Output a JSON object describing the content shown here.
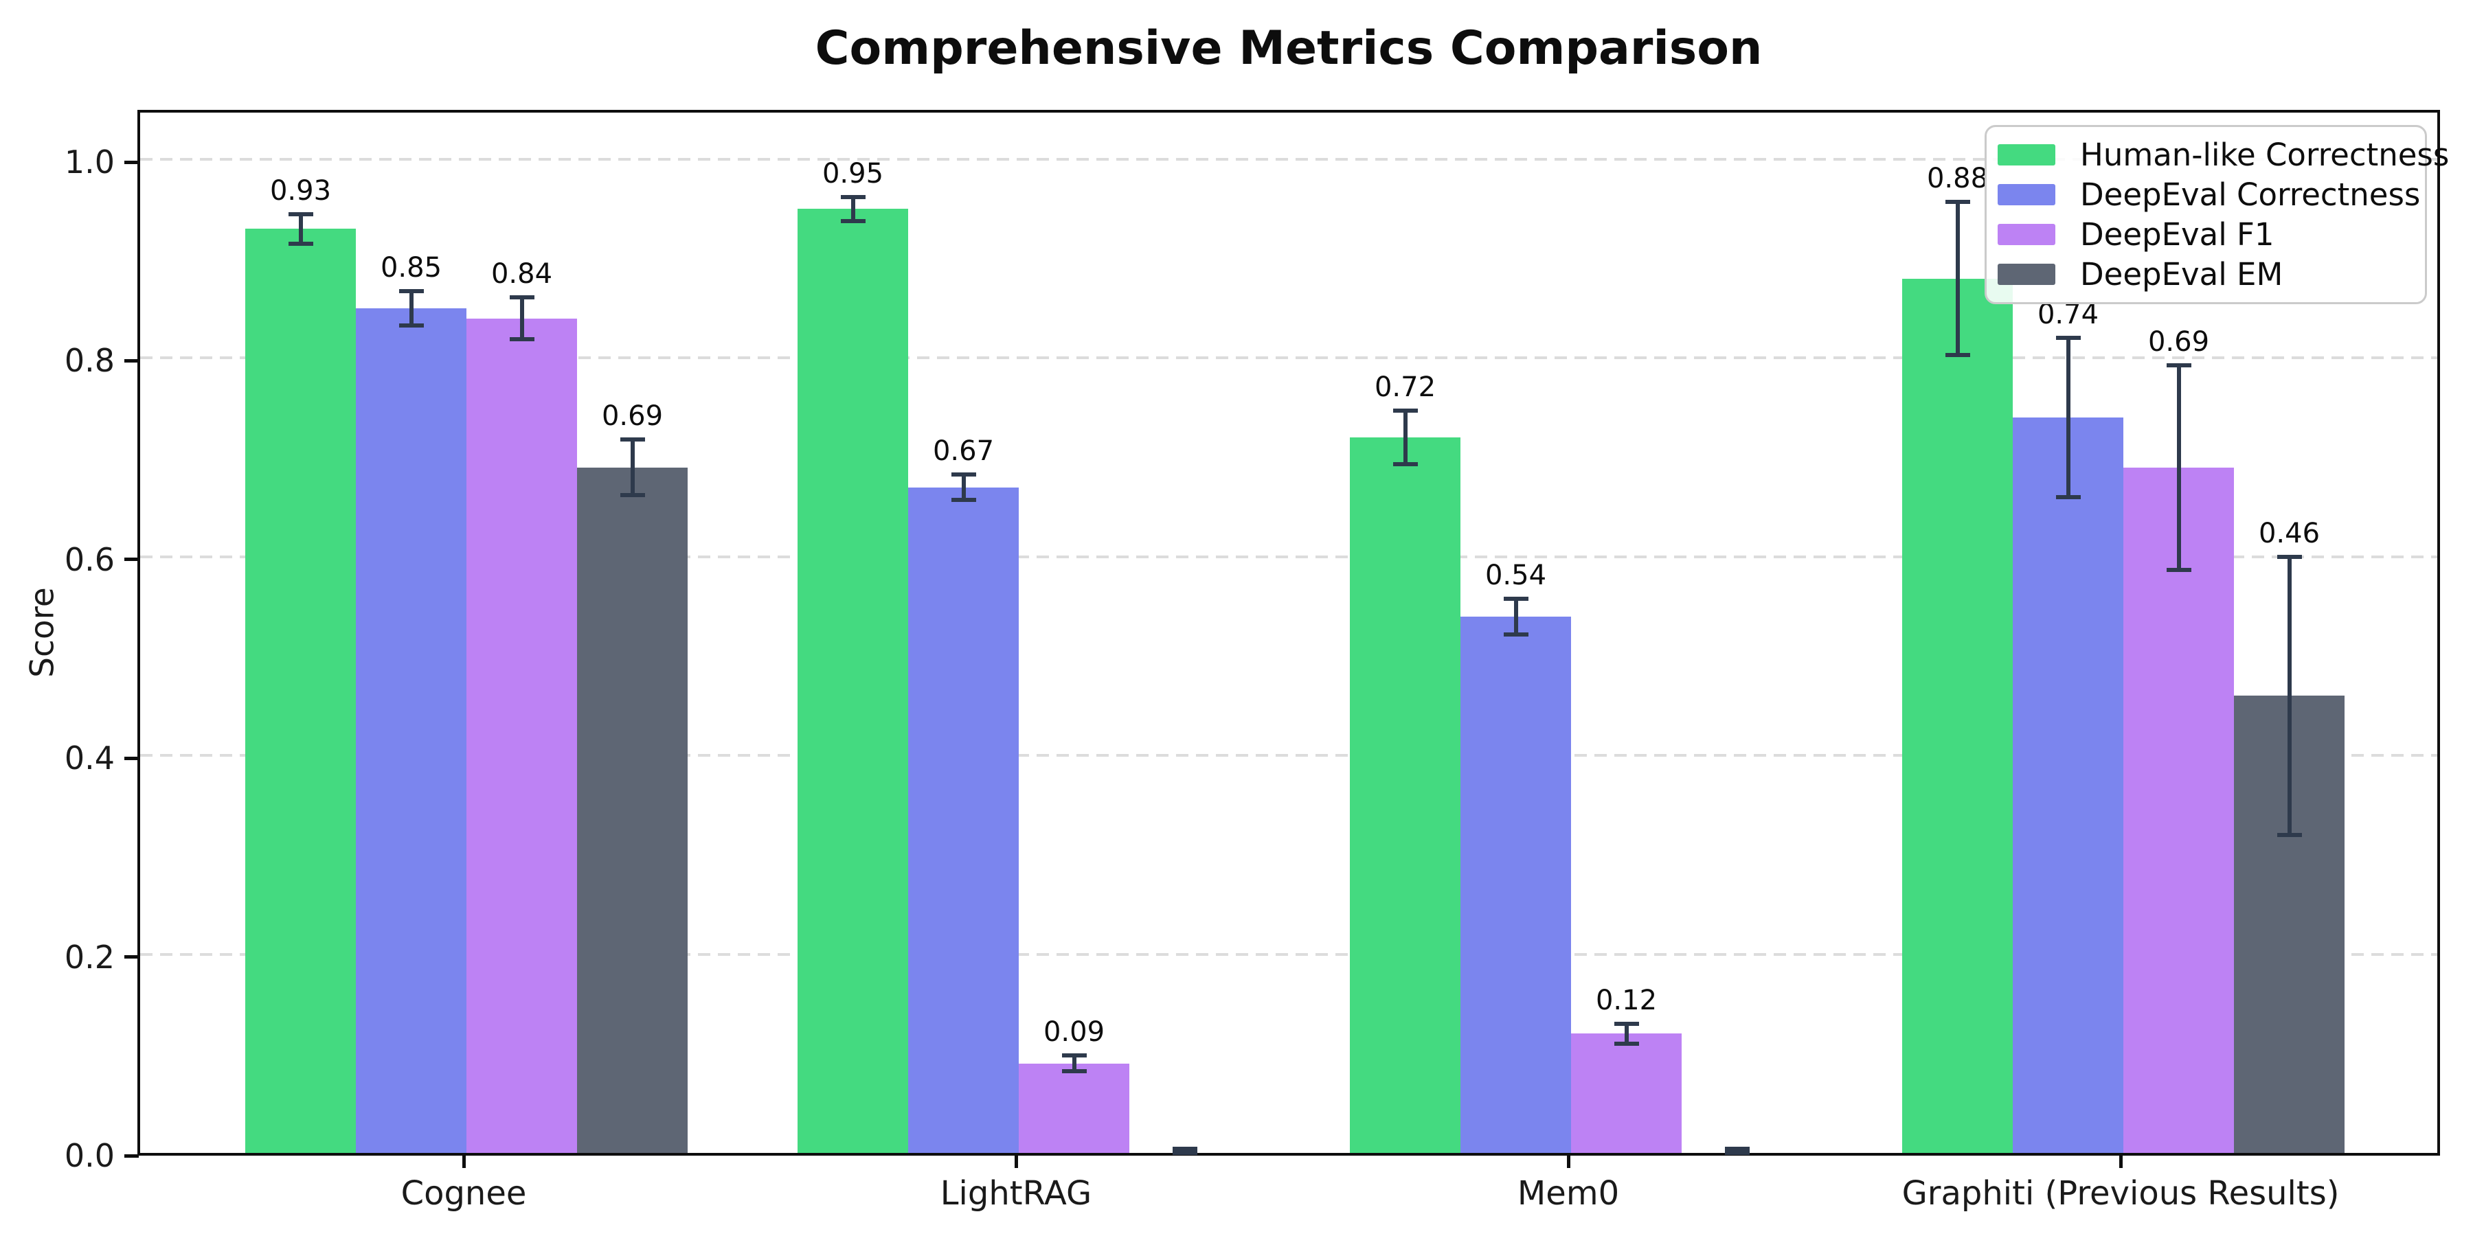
{
  "chart_data": {
    "type": "bar",
    "title": "Comprehensive Metrics Comparison",
    "ylabel": "Score",
    "categories": [
      "Cognee",
      "LightRAG",
      "Mem0",
      "Graphiti (Previous Results)"
    ],
    "series": [
      {
        "name": "Human-like Correctness",
        "color": "#44da80",
        "values": [
          0.93,
          0.95,
          0.72,
          0.88
        ],
        "errors": [
          0.015,
          0.012,
          0.027,
          0.077
        ]
      },
      {
        "name": "DeepEval Correctness",
        "color": "#7b85ee",
        "values": [
          0.85,
          0.67,
          0.54,
          0.74
        ],
        "errors": [
          0.017,
          0.013,
          0.018,
          0.08
        ]
      },
      {
        "name": "DeepEval F1",
        "color": "#bd82f4",
        "values": [
          0.84,
          0.09,
          0.12,
          0.69
        ],
        "errors": [
          0.021,
          0.008,
          0.01,
          0.103
        ]
      },
      {
        "name": "DeepEval EM",
        "color": "#5e6674",
        "values": [
          0.69,
          0.0,
          0.0,
          0.46
        ],
        "errors": [
          0.028,
          0.004,
          0.004,
          0.14
        ]
      }
    ],
    "bar_labels": [
      [
        "0.93",
        "0.95",
        "0.72",
        "0.88"
      ],
      [
        "0.85",
        "0.67",
        "0.54",
        "0.74"
      ],
      [
        "0.84",
        "0.09",
        "0.12",
        "0.69"
      ],
      [
        "0.69",
        "",
        "",
        "0.46"
      ]
    ],
    "yticks": [
      "0.0",
      "0.2",
      "0.4",
      "0.6",
      "0.8",
      "1.0"
    ],
    "ytick_values": [
      0.0,
      0.2,
      0.4,
      0.6,
      0.8,
      1.0
    ],
    "ylim": [
      0,
      1.053
    ],
    "grid": {
      "axis": "y",
      "style": "dashed",
      "color": "#dcdcdc"
    },
    "legend": {
      "position": "upper right",
      "entries": [
        "Human-like Correctness",
        "DeepEval Correctness",
        "DeepEval F1",
        "DeepEval EM"
      ]
    },
    "error_bar_color": "#2e3a4c",
    "spine_color": "#0e0e0e"
  }
}
